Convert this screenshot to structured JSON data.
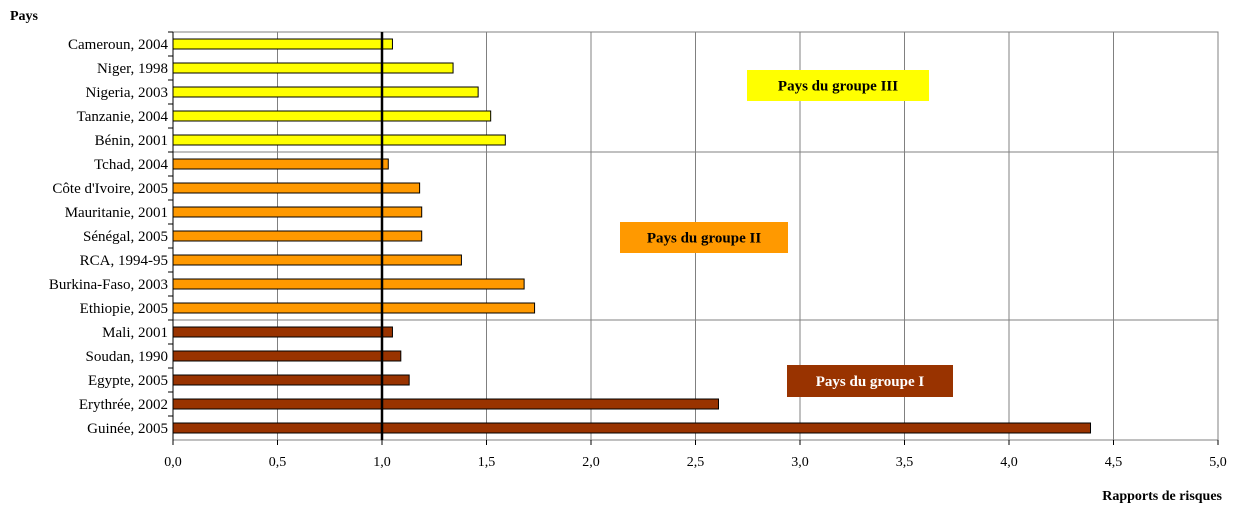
{
  "chart_data": {
    "type": "bar",
    "orientation": "horizontal",
    "ylabel": "Pays",
    "xlabel": "Rapports de risques",
    "xlim": [
      0,
      5
    ],
    "xticks": [
      "0,0",
      "0,5",
      "1,0",
      "1,5",
      "2,0",
      "2,5",
      "3,0",
      "3,5",
      "4,0",
      "4,5",
      "5,0"
    ],
    "reference_line": 1.0,
    "grid": true,
    "categories": [
      "Cameroun, 2004",
      "Niger, 1998",
      "Nigeria, 2003",
      "Tanzanie, 2004",
      "Bénin, 2001",
      "Tchad, 2004",
      "Côte d'Ivoire, 2005",
      "Mauritanie, 2001",
      "Sénégal, 2005",
      "RCA, 1994-95",
      "Burkina-Faso, 2003",
      "Ethiopie, 2005",
      "Mali, 2001",
      "Soudan, 1990",
      "Egypte, 2005",
      "Erythrée, 2002",
      "Guinée, 2005"
    ],
    "values": [
      1.05,
      1.34,
      1.46,
      1.52,
      1.59,
      1.03,
      1.18,
      1.19,
      1.19,
      1.38,
      1.68,
      1.73,
      1.05,
      1.09,
      1.13,
      2.61,
      4.39
    ],
    "groups": [
      {
        "label": "Pays du groupe III",
        "color": "#ffff00",
        "text_color": "#000000",
        "members": [
          0,
          1,
          2,
          3,
          4
        ]
      },
      {
        "label": "Pays du groupe II",
        "color": "#ff9900",
        "text_color": "#000000",
        "members": [
          5,
          6,
          7,
          8,
          9,
          10,
          11
        ]
      },
      {
        "label": "Pays du groupe I",
        "color": "#993300",
        "text_color": "#ffffff",
        "members": [
          12,
          13,
          14,
          15,
          16
        ]
      }
    ]
  }
}
